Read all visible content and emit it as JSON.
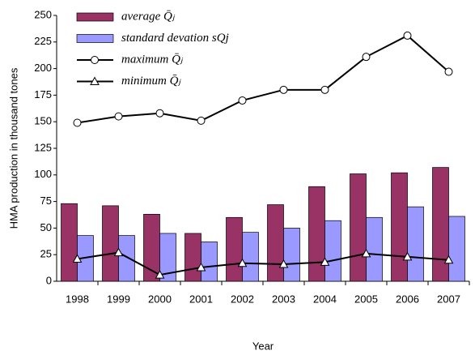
{
  "chart_data": {
    "type": "bar",
    "x_label": "Year",
    "y_label": "HMA production in thousand tones",
    "categories": [
      "1998",
      "1999",
      "2000",
      "2001",
      "2002",
      "2003",
      "2004",
      "2005",
      "2006",
      "2007"
    ],
    "series": [
      {
        "name": "average Q̄ⱼ",
        "type": "bar",
        "color": "#993366",
        "values": [
          73,
          71,
          63,
          45,
          60,
          72,
          89,
          101,
          102,
          107
        ]
      },
      {
        "name": "standard devation sQj",
        "type": "bar",
        "color": "#9999ff",
        "values": [
          43,
          43,
          45,
          37,
          46,
          50,
          57,
          60,
          70,
          61
        ]
      },
      {
        "name": "maximum Q̄ⱼ",
        "type": "line",
        "marker": "circle",
        "color": "#000000",
        "values": [
          149,
          155,
          158,
          151,
          170,
          180,
          180,
          211,
          231,
          197
        ]
      },
      {
        "name": "minimum Q̄ⱼ",
        "type": "line",
        "marker": "triangle",
        "color": "#000000",
        "values": [
          21,
          27,
          6,
          13,
          17,
          16,
          18,
          26,
          23,
          20
        ]
      }
    ],
    "ylim": [
      0,
      250
    ],
    "yticks": [
      0,
      25,
      50,
      75,
      100,
      125,
      150,
      175,
      200,
      225,
      250
    ],
    "legend": "upper left"
  }
}
